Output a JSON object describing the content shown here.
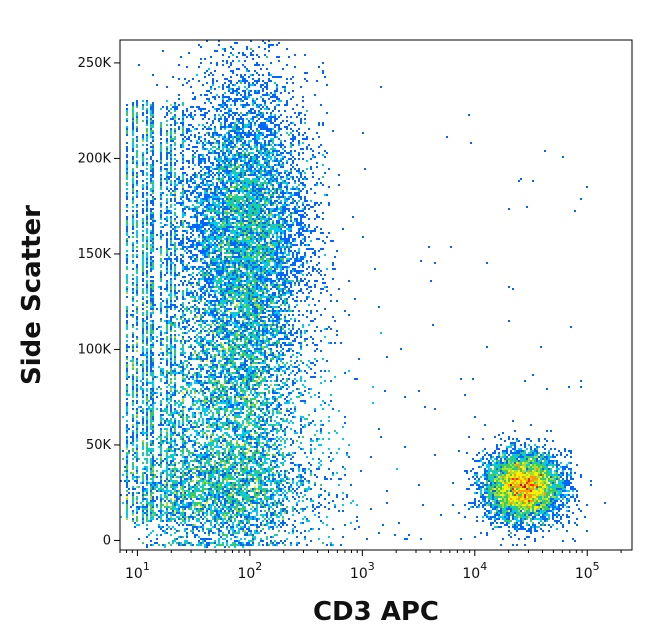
{
  "chart_data": {
    "type": "scatter",
    "subtype": "flow-cytometry-density-dot-plot",
    "title": "",
    "xlabel": "CD3 APC",
    "ylabel": "Side Scatter",
    "x_scale": "log",
    "xlim": [
      7,
      250000
    ],
    "ylim": [
      -5000,
      262000
    ],
    "x_ticks": [
      {
        "value": 10,
        "base": "10",
        "exp": "1"
      },
      {
        "value": 100,
        "base": "10",
        "exp": "2"
      },
      {
        "value": 1000,
        "base": "10",
        "exp": "3"
      },
      {
        "value": 10000,
        "base": "10",
        "exp": "4"
      },
      {
        "value": 100000,
        "base": "10",
        "exp": "5"
      }
    ],
    "y_ticks": [
      {
        "value": 0,
        "label": "0"
      },
      {
        "value": 50000,
        "label": "50K"
      },
      {
        "value": 100000,
        "label": "100K"
      },
      {
        "value": 150000,
        "label": "150K"
      },
      {
        "value": 200000,
        "label": "200K"
      },
      {
        "value": 250000,
        "label": "250K"
      }
    ],
    "grid": false,
    "legend": "none",
    "color_scale": [
      "#0000cc",
      "#0066ff",
      "#00ccee",
      "#33cc66",
      "#aadd33",
      "#ffee00",
      "#ff9900",
      "#ff2200",
      "#cc0000"
    ],
    "populations": [
      {
        "name": "cd3-negative-main",
        "center_x": 90,
        "center_y": 160000,
        "spread_x_decades": 0.28,
        "spread_y": 42000,
        "count": 9000,
        "density": "high"
      },
      {
        "name": "cd3-negative-lower",
        "center_x": 70,
        "center_y": 70000,
        "spread_x_decades": 0.35,
        "spread_y": 30000,
        "count": 5000,
        "density": "medium"
      },
      {
        "name": "cd3-negative-base",
        "center_x": 60,
        "center_y": 25000,
        "spread_x_decades": 0.4,
        "spread_y": 15000,
        "count": 3500,
        "density": "medium"
      },
      {
        "name": "cd3-positive",
        "center_x": 27000,
        "center_y": 28000,
        "spread_x_decades": 0.17,
        "spread_y": 9000,
        "count": 5500,
        "density": "very-high"
      },
      {
        "name": "sparse-scatter",
        "x_range": [
          200,
          100000
        ],
        "y_range": [
          0,
          260000
        ],
        "count": 140,
        "density": "low"
      }
    ]
  }
}
